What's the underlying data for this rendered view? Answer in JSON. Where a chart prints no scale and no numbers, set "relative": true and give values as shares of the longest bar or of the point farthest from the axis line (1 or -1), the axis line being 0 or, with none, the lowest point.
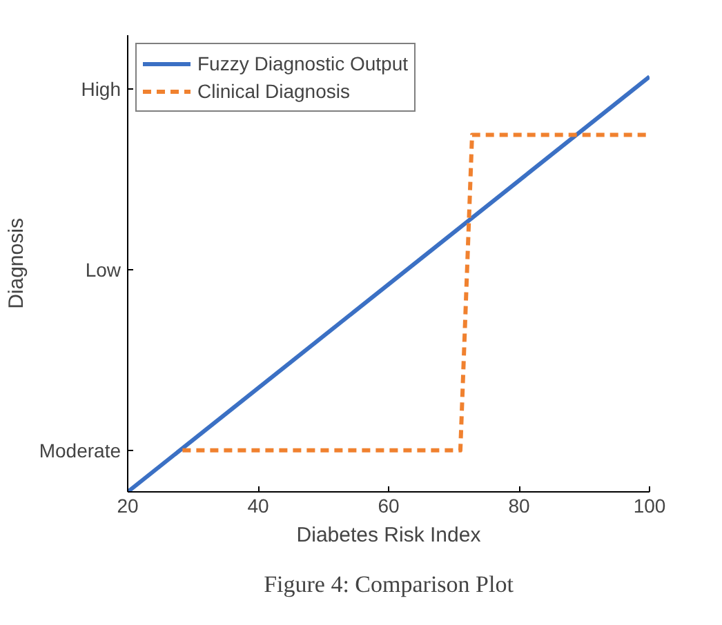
{
  "chart_data": {
    "type": "line",
    "xlabel": "Diabetes Risk Index",
    "ylabel": "Diagnosis",
    "xlim": [
      20,
      100
    ],
    "xticks": [
      20,
      40,
      60,
      80,
      100
    ],
    "relative": true,
    "series": [
      {
        "name": "Fuzzy Diagnostic Output",
        "color": "#3b70c4",
        "x": [
          20,
          100
        ],
        "values": [
          0,
          1
        ],
        "line_style": "solid"
      },
      {
        "name": "Clinical Diagnosis",
        "color": "#f0812f",
        "x": [
          28.4,
          71,
          72.8,
          100
        ],
        "values": [
          0.1,
          0.1,
          0.86,
          0.86
        ],
        "line_style": "dashed"
      }
    ],
    "legend": "top left",
    "grid": false,
    "marker": "none",
    "annotations": [
      "Moderate",
      "Low",
      "High",
      "Figure 4: Comparison Plot"
    ]
  }
}
